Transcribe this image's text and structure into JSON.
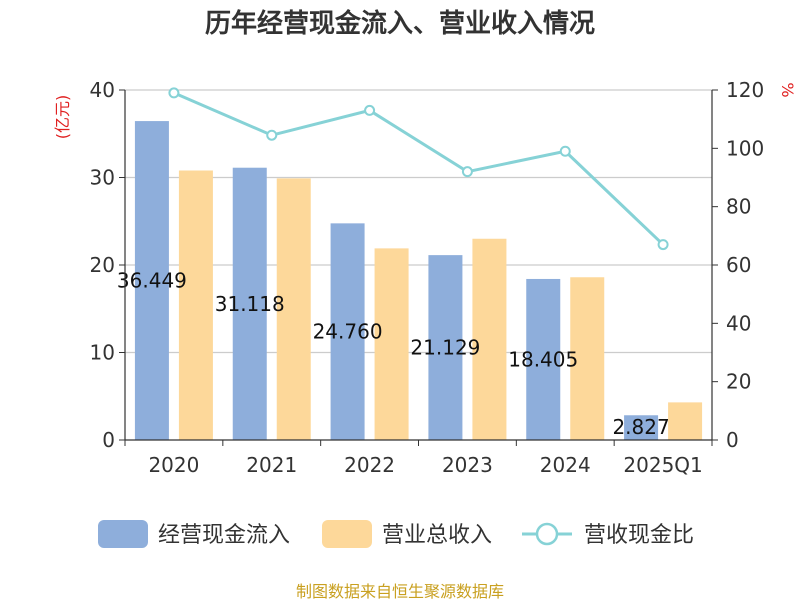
{
  "chart_data": {
    "type": "bar",
    "title": "历年经营现金流入、营业收入情况",
    "categories": [
      "2020",
      "2021",
      "2022",
      "2023",
      "2024",
      "2025Q1"
    ],
    "y_left_unit": "(亿元)",
    "y_right_unit": "%",
    "ylim_left": [
      0,
      40
    ],
    "ylim_right": [
      0,
      120
    ],
    "y_left_ticks": [
      "0",
      "10",
      "20",
      "30",
      "40"
    ],
    "y_right_ticks": [
      "0",
      "20",
      "40",
      "60",
      "80",
      "100",
      "120"
    ],
    "grid": true,
    "legend_position": "bottom",
    "series": [
      {
        "name": "经营现金流入",
        "type": "bar",
        "axis": "left",
        "color": "#8eaedb",
        "values": [
          36.449,
          31.118,
          24.76,
          21.129,
          18.405,
          2.827
        ],
        "labels": [
          "36.449",
          "31.118",
          "24.760",
          "21.129",
          "18.405",
          "2.827"
        ]
      },
      {
        "name": "营业总收入",
        "type": "bar",
        "axis": "left",
        "color": "#fdd89a",
        "values": [
          30.8,
          29.9,
          21.9,
          23.0,
          18.6,
          4.3
        ]
      },
      {
        "name": "营收现金比",
        "type": "line",
        "axis": "right",
        "color": "#86d2d6",
        "values": [
          119.0,
          104.5,
          113.0,
          92.0,
          99.0,
          67.0
        ]
      }
    ],
    "source": "制图数据来自恒生聚源数据库"
  }
}
